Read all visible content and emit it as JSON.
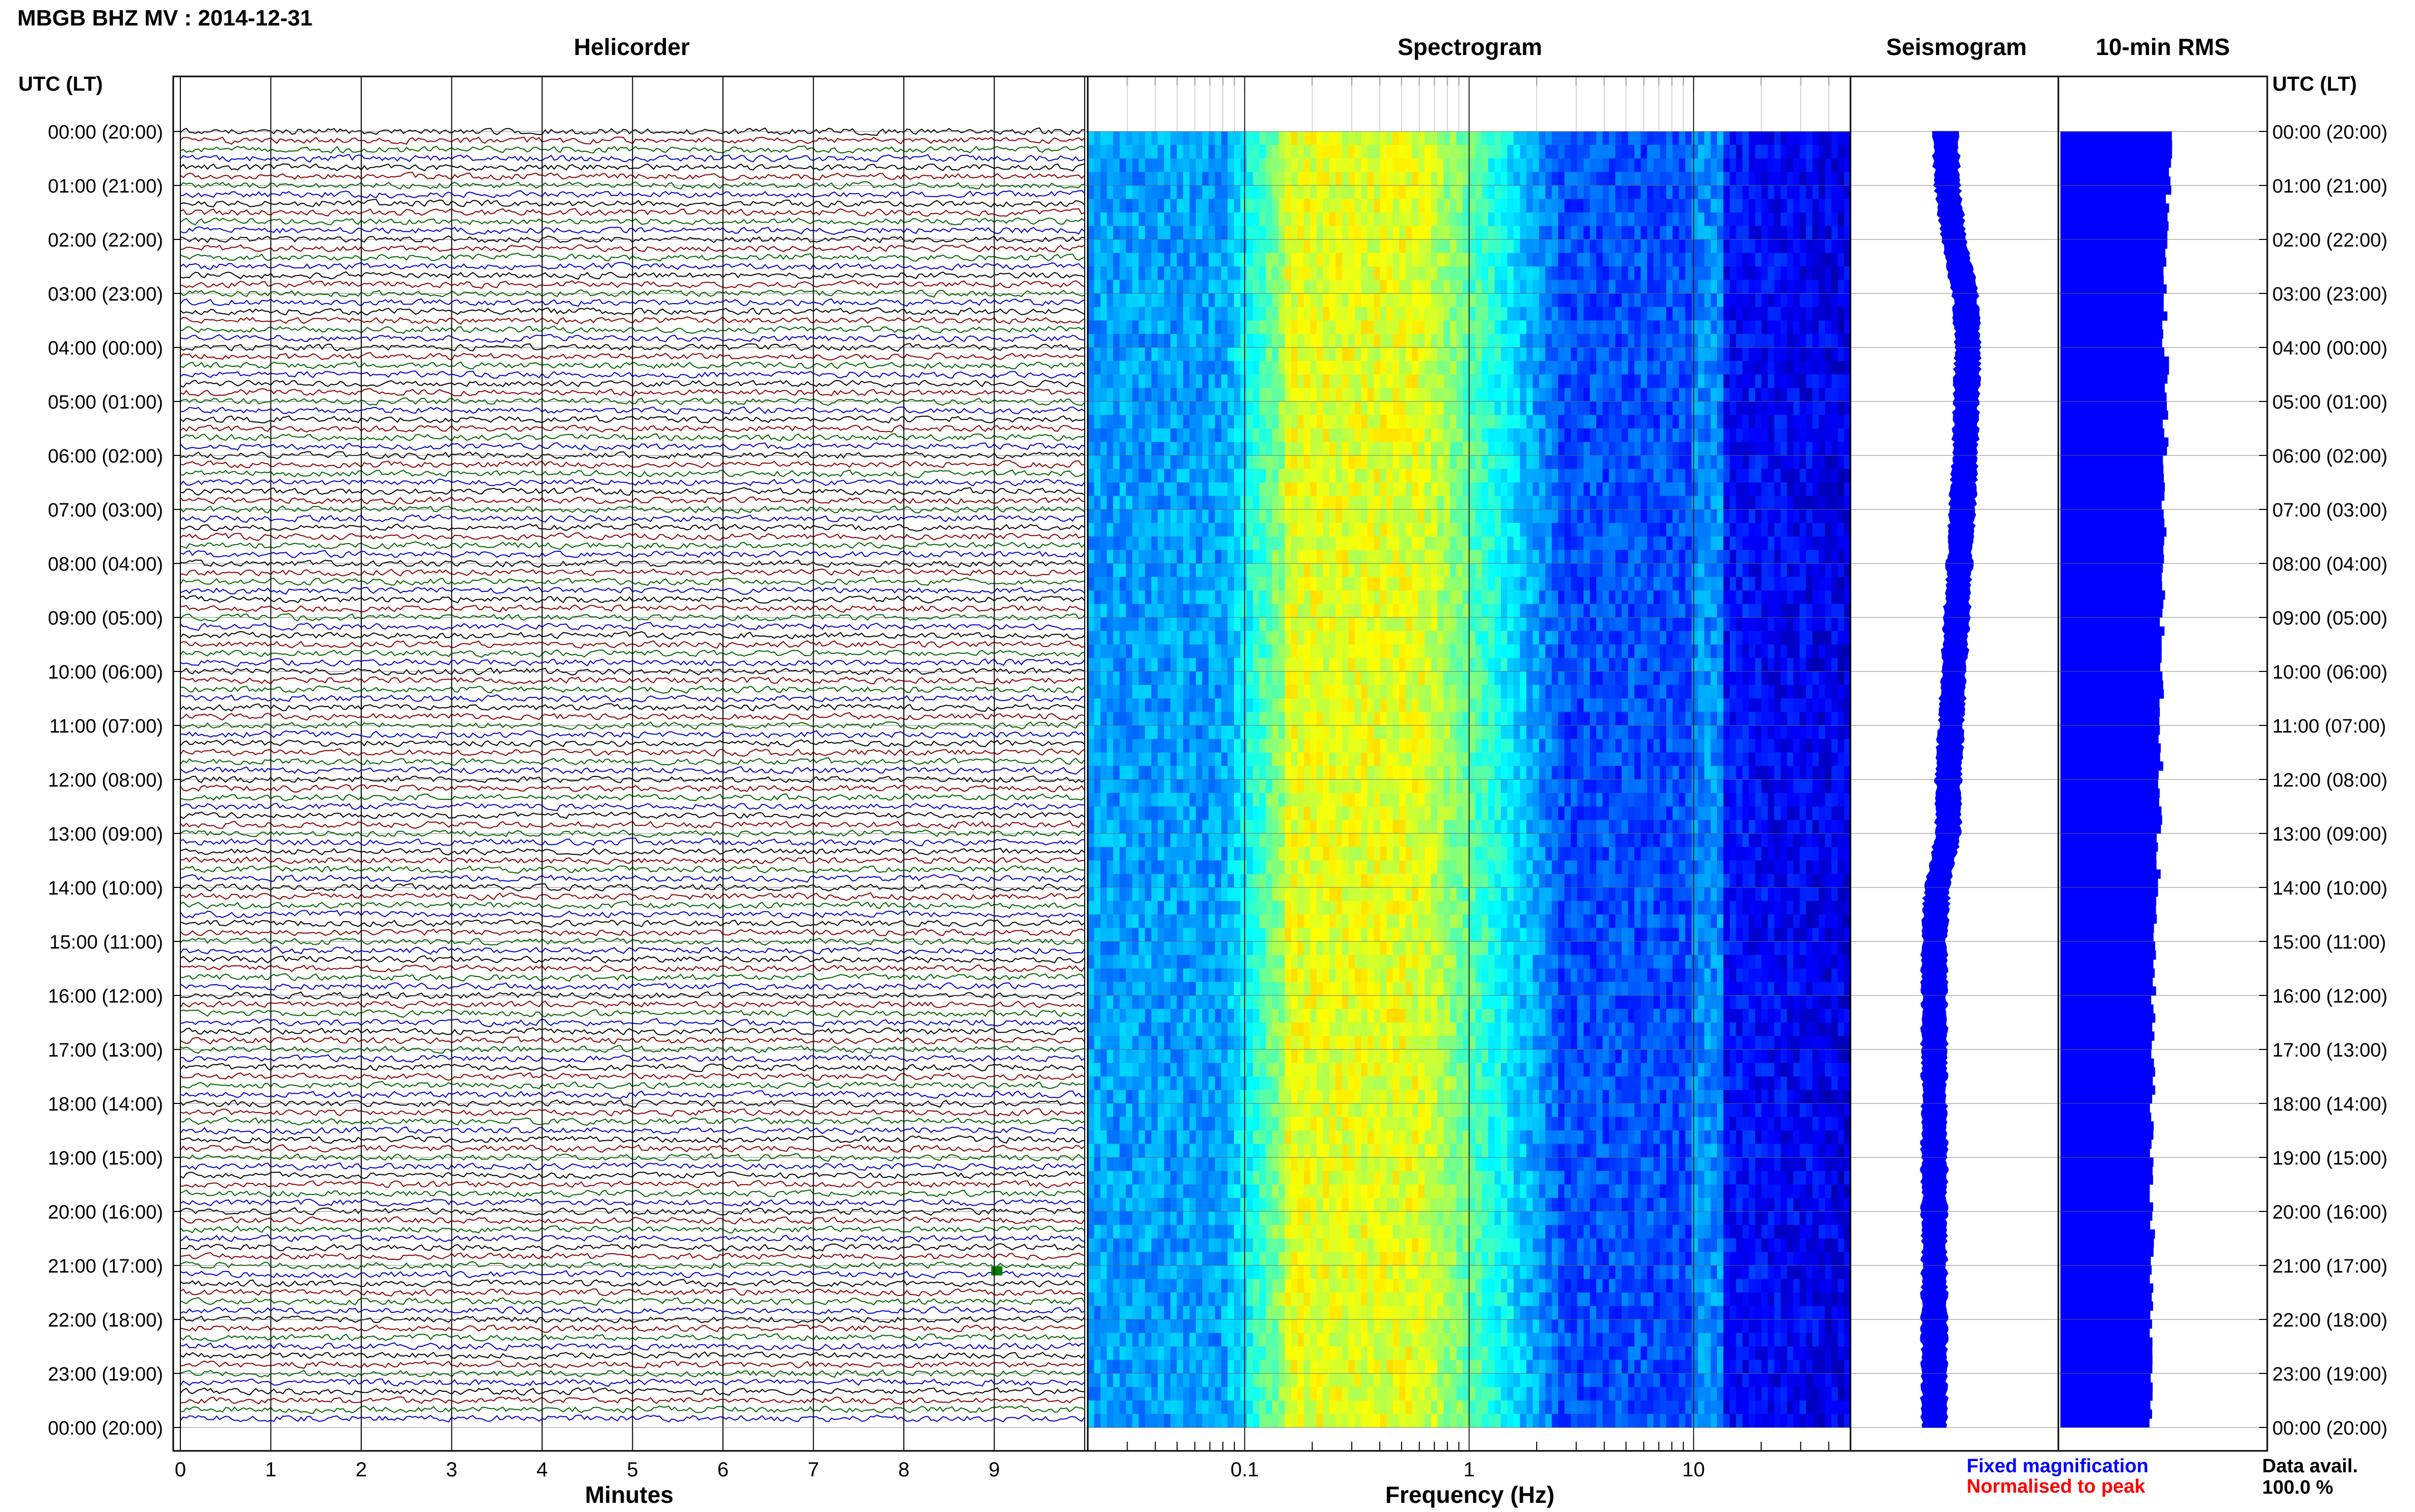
{
  "header": {
    "title": "MBGB BHZ MV : 2014-12-31"
  },
  "panels": {
    "helicorder": "Helicorder",
    "spectrogram": "Spectrogram",
    "seismogram": "Seismogram",
    "rms": "10-min RMS"
  },
  "axis_labels": {
    "utc_left": "UTC (LT)",
    "utc_right": "UTC (LT)",
    "minutes": "Minutes",
    "frequency": "Frequency (Hz)"
  },
  "time_labels": [
    "00:00 (20:00)",
    "01:00 (21:00)",
    "02:00 (22:00)",
    "03:00 (23:00)",
    "04:00 (00:00)",
    "05:00 (01:00)",
    "06:00 (02:00)",
    "07:00 (03:00)",
    "08:00 (04:00)",
    "09:00 (05:00)",
    "10:00 (06:00)",
    "11:00 (07:00)",
    "12:00 (08:00)",
    "13:00 (09:00)",
    "14:00 (10:00)",
    "15:00 (11:00)",
    "16:00 (12:00)",
    "17:00 (13:00)",
    "18:00 (14:00)",
    "19:00 (15:00)",
    "20:00 (16:00)",
    "21:00 (17:00)",
    "22:00 (18:00)",
    "23:00 (19:00)",
    "00:00 (20:00)"
  ],
  "minute_ticks": [
    "0",
    "1",
    "2",
    "3",
    "4",
    "5",
    "6",
    "7",
    "8",
    "9"
  ],
  "frequency_ticks": [
    "0.1",
    "1",
    "10"
  ],
  "legend": {
    "fixed": "Fixed magnification",
    "normalised": "Normalised to peak",
    "fixed_color": "#0000ff",
    "normalised_color": "#ff0000"
  },
  "data_availability": {
    "label": "Data avail.",
    "value": "100.0 %"
  },
  "chart_data": [
    {
      "type": "line",
      "title": "Helicorder",
      "xlabel": "Minutes",
      "xlim": [
        0,
        10
      ],
      "rows_per_hour": 6,
      "hours": 24,
      "trace_colors": [
        "#000000",
        "#8b0000",
        "#006400",
        "#0000cd"
      ],
      "grid": true,
      "notes": "Broadband noise traces; a small green event near minute 9 around 21:00 UTC."
    },
    {
      "type": "heatmap",
      "title": "Spectrogram",
      "xlabel": "Frequency (Hz)",
      "xscale": "log",
      "xlim": [
        0.02,
        50
      ],
      "x_ticks": [
        0.1,
        1,
        10
      ],
      "hours": 24,
      "colormap": "jet",
      "peak_band_hz": [
        0.15,
        0.6
      ]
    },
    {
      "type": "line",
      "title": "Seismogram",
      "samples_per_hour": 1,
      "envelope_center_offset": [
        -0.15,
        -0.12,
        0.0,
        0.2,
        0.25,
        0.22,
        0.2,
        0.15,
        0.1,
        0.05,
        0.0,
        -0.05,
        -0.1,
        -0.1,
        -0.3,
        -0.35,
        -0.35,
        -0.35,
        -0.35,
        -0.35,
        -0.35,
        -0.35,
        -0.35,
        -0.35,
        -0.35
      ],
      "color": "#0000ff"
    },
    {
      "type": "bar",
      "title": "10-min RMS",
      "orientation": "horizontal",
      "hours": 24,
      "values_relative": [
        0.98,
        0.97,
        0.95,
        0.94,
        0.96,
        0.95,
        0.94,
        0.93,
        0.93,
        0.92,
        0.91,
        0.9,
        0.89,
        0.88,
        0.86,
        0.85,
        0.84,
        0.84,
        0.83,
        0.83,
        0.83,
        0.82,
        0.82,
        0.81
      ],
      "color": "#0000ff"
    }
  ]
}
